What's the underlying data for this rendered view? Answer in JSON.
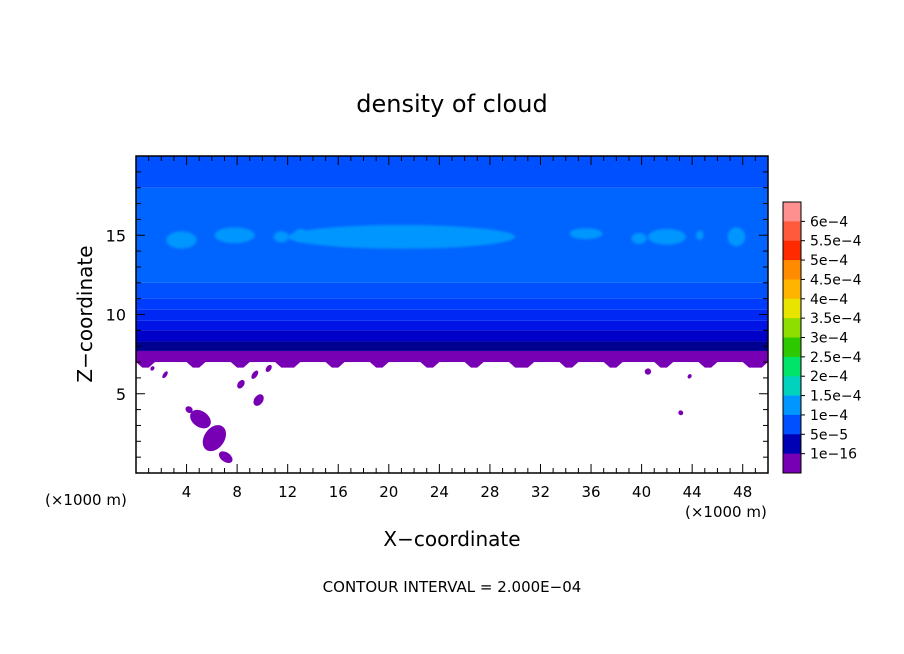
{
  "chart_data": {
    "type": "heatmap",
    "title": "density of cloud",
    "xlabel": "X−coordinate",
    "ylabel": "Z−coordinate",
    "x_unit": "(×1000 m)",
    "x_unit_right": "(×1000 m)",
    "xlim": [
      0,
      50
    ],
    "ylim": [
      0,
      20
    ],
    "x_ticks": [
      4,
      8,
      12,
      16,
      20,
      24,
      28,
      32,
      36,
      40,
      44,
      48
    ],
    "y_ticks": [
      5,
      10,
      15
    ],
    "footer": "CONTOUR INTERVAL = 2.000E−04",
    "colorbar": {
      "labels": [
        "6e−4",
        "5.5e−4",
        "5e−4",
        "4.5e−4",
        "4e−4",
        "3.5e−4",
        "3e−4",
        "2.5e−4",
        "2e−4",
        "1.5e−4",
        "1e−4",
        "5e−5",
        "1e−16"
      ],
      "colors": [
        "#ff9090",
        "#ff5a3c",
        "#ff2a00",
        "#ff8c00",
        "#ffb400",
        "#e8e400",
        "#8ede00",
        "#2ec800",
        "#00e46a",
        "#00d2be",
        "#0096ff",
        "#0050ff",
        "#0000b4",
        "#7800b4"
      ]
    },
    "bands": [
      {
        "z0": 7.0,
        "z1": 7.7,
        "color": "#7800b4"
      },
      {
        "z0": 7.7,
        "z1": 8.3,
        "color": "#000090"
      },
      {
        "z0": 8.3,
        "z1": 9.0,
        "color": "#0000c8"
      },
      {
        "z0": 9.0,
        "z1": 9.6,
        "color": "#0014e6"
      },
      {
        "z0": 9.6,
        "z1": 10.3,
        "color": "#0028f5"
      },
      {
        "z0": 10.3,
        "z1": 11.0,
        "color": "#003cff"
      },
      {
        "z0": 11.0,
        "z1": 12.0,
        "color": "#0050ff"
      },
      {
        "z0": 12.0,
        "z1": 18.0,
        "color": "#0064ff"
      },
      {
        "z0": 18.0,
        "z1": 20.0,
        "color": "#0050ff"
      }
    ],
    "light_patches": [
      {
        "x": 3.6,
        "z": 14.7,
        "rx": 1.2,
        "rz": 0.55
      },
      {
        "x": 7.8,
        "z": 15.0,
        "rx": 1.6,
        "rz": 0.5
      },
      {
        "x": 11.5,
        "z": 14.9,
        "rx": 0.6,
        "rz": 0.35
      },
      {
        "x": 13.0,
        "z": 15.0,
        "rx": 0.5,
        "rz": 0.4
      },
      {
        "x": 21.0,
        "z": 14.9,
        "rx": 9.0,
        "rz": 0.75
      },
      {
        "x": 35.6,
        "z": 15.1,
        "rx": 1.3,
        "rz": 0.35
      },
      {
        "x": 39.8,
        "z": 14.8,
        "rx": 0.6,
        "rz": 0.35
      },
      {
        "x": 42.0,
        "z": 14.9,
        "rx": 1.5,
        "rz": 0.5
      },
      {
        "x": 44.6,
        "z": 15.0,
        "rx": 0.3,
        "rz": 0.3
      },
      {
        "x": 47.5,
        "z": 14.9,
        "rx": 0.7,
        "rz": 0.6
      }
    ],
    "low_patches": [
      {
        "x": 7.1,
        "z": 1.0,
        "rx": 0.6,
        "rz": 0.3
      },
      {
        "x": 6.2,
        "z": 2.2,
        "rx": 0.8,
        "rz": 0.9
      },
      {
        "x": 5.1,
        "z": 3.4,
        "rx": 0.9,
        "rz": 0.5
      },
      {
        "x": 4.2,
        "z": 4.0,
        "rx": 0.3,
        "rz": 0.2
      },
      {
        "x": 6.6,
        "z": 2.8,
        "rx": 0.25,
        "rz": 0.2
      },
      {
        "x": 8.3,
        "z": 5.6,
        "rx": 0.25,
        "rz": 0.3
      },
      {
        "x": 9.7,
        "z": 4.6,
        "rx": 0.35,
        "rz": 0.4
      },
      {
        "x": 9.4,
        "z": 6.2,
        "rx": 0.2,
        "rz": 0.3
      },
      {
        "x": 10.5,
        "z": 6.6,
        "rx": 0.2,
        "rz": 0.25
      },
      {
        "x": 40.5,
        "z": 6.4,
        "rx": 0.25,
        "rz": 0.2
      },
      {
        "x": 43.1,
        "z": 3.8,
        "rx": 0.2,
        "rz": 0.15
      },
      {
        "x": 43.8,
        "z": 6.1,
        "rx": 0.15,
        "rz": 0.15
      },
      {
        "x": 1.3,
        "z": 6.6,
        "rx": 0.15,
        "rz": 0.15
      },
      {
        "x": 2.3,
        "z": 6.2,
        "rx": 0.15,
        "rz": 0.25
      }
    ],
    "grid": false
  }
}
